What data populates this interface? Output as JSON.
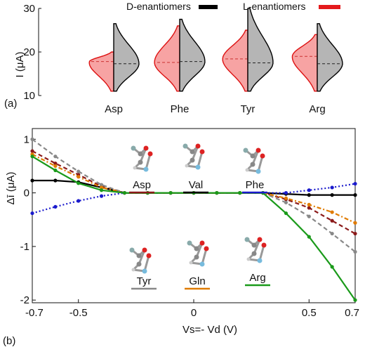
{
  "chart_data": [
    {
      "panel_label": "(a)",
      "type": "violin",
      "ylabel": "I (μA)",
      "ylim": [
        10,
        30
      ],
      "yticks": [
        "10",
        "20",
        "30"
      ],
      "categories": [
        "Asp",
        "Phe",
        "Tyr",
        "Arg"
      ],
      "legend": [
        {
          "name": "D-enantiomers",
          "color": "#000000"
        },
        {
          "name": "L-enantiomers",
          "color": "#e41a1c"
        }
      ],
      "series": [
        {
          "name": "L-enantiomers",
          "side": "left",
          "fill": "#f7a3a3",
          "line": "#d11",
          "min": [
            11,
            11,
            11,
            11
          ],
          "max": [
            20,
            26,
            25,
            24
          ],
          "median": [
            17.8,
            17.6,
            18.4,
            19.0
          ]
        },
        {
          "name": "D-enantiomers",
          "side": "right",
          "fill": "#b5b5b5",
          "line": "#000",
          "min": [
            11,
            11,
            11,
            11
          ],
          "max": [
            26.5,
            27.5,
            30,
            26.5
          ],
          "median": [
            17.3,
            17.8,
            17.5,
            17.3
          ]
        }
      ]
    },
    {
      "panel_label": "(b)",
      "type": "line",
      "ylabel": "Δī (μA)",
      "xlabel": "Vs=- Vd (V)",
      "xlim": [
        -0.7,
        0.7
      ],
      "ylim": [
        -2.05,
        1.2
      ],
      "xticks": [
        "-0.7",
        "-0.5",
        "0",
        "0.5",
        "0.7"
      ],
      "yticks": [
        "1",
        "0",
        "-1",
        "-2"
      ],
      "x": [
        -0.7,
        -0.6,
        -0.5,
        -0.4,
        -0.3,
        -0.2,
        -0.1,
        0,
        0.1,
        0.2,
        0.3,
        0.4,
        0.5,
        0.6,
        0.7
      ],
      "series": [
        {
          "name": "Asp",
          "color": "#8b1a1a",
          "dash": "6,4",
          "values": [
            0.78,
            0.55,
            0.34,
            0.12,
            0,
            0,
            0,
            0,
            0,
            0,
            0,
            -0.12,
            -0.28,
            -0.52,
            -0.76
          ]
        },
        {
          "name": "Val",
          "color": "#000000",
          "dash": "",
          "values": [
            0.23,
            0.23,
            0.2,
            0.1,
            0,
            0,
            0,
            0,
            0,
            0,
            0,
            -0.02,
            -0.04,
            -0.04,
            -0.04
          ]
        },
        {
          "name": "Phe",
          "color": "#1a1acc",
          "dash": "2,3",
          "values": [
            -0.38,
            -0.26,
            -0.15,
            -0.06,
            0,
            0,
            0,
            0,
            0,
            0,
            0,
            0,
            0.05,
            0.1,
            0.17
          ]
        },
        {
          "name": "Tyr",
          "color": "#888888",
          "dash": "6,4",
          "values": [
            1.0,
            0.68,
            0.4,
            0.15,
            0,
            0,
            0,
            0,
            0,
            0,
            0,
            -0.18,
            -0.44,
            -0.76,
            -1.1
          ]
        },
        {
          "name": "Gln",
          "color": "#e07b00",
          "dash": "6,3,2,3",
          "values": [
            0.72,
            0.5,
            0.3,
            0.1,
            0,
            0,
            0,
            0,
            0,
            0,
            0,
            -0.1,
            -0.22,
            -0.36,
            -0.56
          ]
        },
        {
          "name": "Arg",
          "color": "#1a9a1a",
          "dash": "",
          "values": [
            0.68,
            0.42,
            0.18,
            0.05,
            0,
            0,
            0,
            0,
            0,
            0,
            0,
            -0.38,
            -0.82,
            -1.38,
            -2.0
          ]
        }
      ],
      "molecule_labels": [
        "Asp",
        "Val",
        "Phe",
        "Tyr",
        "Gln",
        "Arg"
      ]
    }
  ]
}
